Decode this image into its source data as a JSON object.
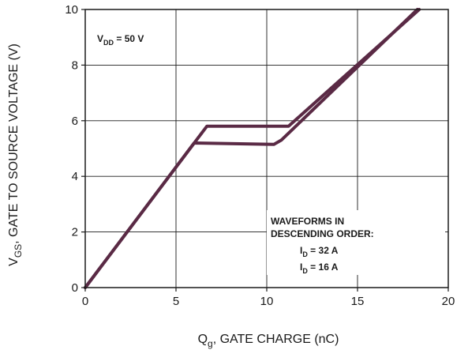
{
  "chart_data": {
    "type": "line",
    "xlabel": {
      "main": "Q",
      "sub": "g",
      "rest": ", GATE CHARGE (nC)"
    },
    "ylabel": {
      "main": "V",
      "sub": "GS",
      "rest": ", GATE TO SOURCE VOLTAGE (V)"
    },
    "xlim": [
      0,
      20
    ],
    "ylim": [
      0,
      10
    ],
    "xticks": [
      0,
      5,
      10,
      15,
      20
    ],
    "yticks": [
      0,
      2,
      4,
      6,
      8,
      10
    ],
    "grid": true,
    "colors": {
      "line": "#5a2a45",
      "grid": "#1a1a1a"
    },
    "series": [
      {
        "name": "I_D = 32 A",
        "x": [
          0,
          6.7,
          11.2,
          18.4
        ],
        "y": [
          0,
          5.8,
          5.8,
          10.0
        ]
      },
      {
        "name": "I_D = 16 A",
        "x": [
          0,
          6.0,
          10.4,
          10.8,
          18.3
        ],
        "y": [
          0,
          5.2,
          5.15,
          5.3,
          10.0
        ]
      }
    ],
    "annotations": {
      "vdd": {
        "main": "V",
        "sub": "DD",
        "rest": " = 50 V"
      },
      "legend_title_1": "WAVEFORMS IN",
      "legend_title_2": "DESCENDING ORDER:",
      "legend_items": [
        {
          "main": "I",
          "sub": "D",
          "rest": " = 32 A"
        },
        {
          "main": "I",
          "sub": "D",
          "rest": " = 16 A"
        }
      ]
    }
  }
}
